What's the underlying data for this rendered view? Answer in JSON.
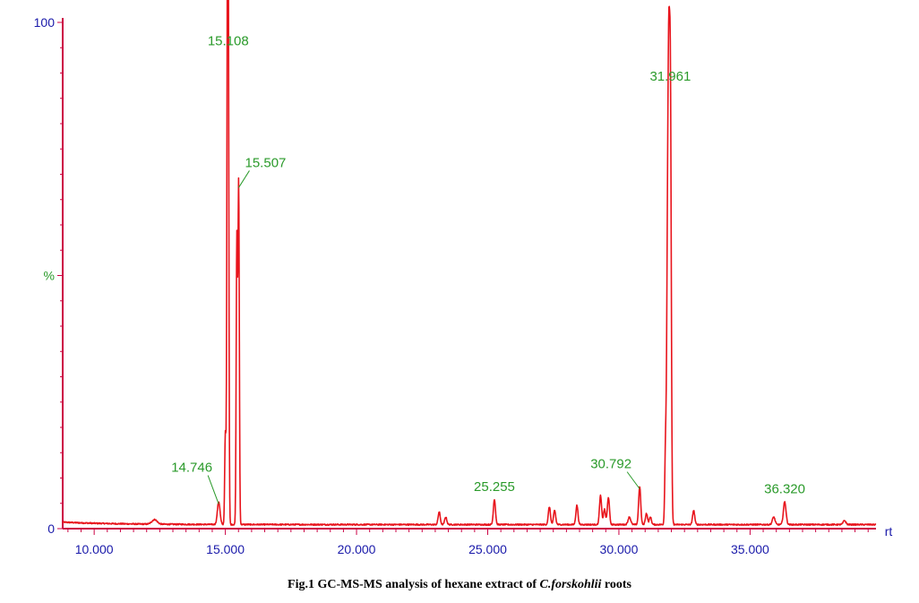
{
  "chart_data": {
    "type": "line",
    "xlabel": "rt",
    "xlim": [
      8.8,
      39.8
    ],
    "ylim": [
      0,
      100
    ],
    "x_ticks": [
      "10.000",
      "15.000",
      "20.000",
      "25.000",
      "30.000",
      "35.000"
    ],
    "x_tick_values": [
      10,
      15,
      20,
      25,
      30,
      35
    ],
    "y_ticks": [
      "100",
      "%",
      "0"
    ],
    "y_tick_values": [
      100,
      50,
      0
    ],
    "grid": false,
    "baseline": 0.8,
    "series": [
      {
        "peaks": [
          {
            "rt": 14.746,
            "height": 4.5,
            "width": 0.05
          },
          {
            "rt": 15.0,
            "height": 18.0,
            "width": 0.025
          },
          {
            "rt": 15.08,
            "height": 80.0,
            "width": 0.025
          },
          {
            "rt": 15.108,
            "height": 93.0,
            "width": 0.025
          },
          {
            "rt": 15.44,
            "height": 53.0,
            "width": 0.025
          },
          {
            "rt": 15.507,
            "height": 67.0,
            "width": 0.025
          },
          {
            "rt": 15.42,
            "height": 5.5,
            "width": 0.02
          },
          {
            "rt": 12.3,
            "height": 0.9,
            "width": 0.1
          },
          {
            "rt": 23.15,
            "height": 2.5,
            "width": 0.04
          },
          {
            "rt": 23.4,
            "height": 1.5,
            "width": 0.04
          },
          {
            "rt": 25.255,
            "height": 5.0,
            "width": 0.04
          },
          {
            "rt": 27.35,
            "height": 3.5,
            "width": 0.04
          },
          {
            "rt": 27.55,
            "height": 2.8,
            "width": 0.04
          },
          {
            "rt": 28.4,
            "height": 3.8,
            "width": 0.04
          },
          {
            "rt": 29.3,
            "height": 5.7,
            "width": 0.04
          },
          {
            "rt": 29.45,
            "height": 3.0,
            "width": 0.04
          },
          {
            "rt": 29.6,
            "height": 5.4,
            "width": 0.04
          },
          {
            "rt": 30.4,
            "height": 1.5,
            "width": 0.05
          },
          {
            "rt": 30.792,
            "height": 7.5,
            "width": 0.04
          },
          {
            "rt": 31.05,
            "height": 2.2,
            "width": 0.04
          },
          {
            "rt": 31.2,
            "height": 1.5,
            "width": 0.04
          },
          {
            "rt": 31.78,
            "height": 16.0,
            "width": 0.03
          },
          {
            "rt": 31.85,
            "height": 47.0,
            "width": 0.03
          },
          {
            "rt": 31.9,
            "height": 70.0,
            "width": 0.03
          },
          {
            "rt": 31.961,
            "height": 86.0,
            "width": 0.035
          },
          {
            "rt": 32.85,
            "height": 2.8,
            "width": 0.04
          },
          {
            "rt": 35.9,
            "height": 1.5,
            "width": 0.05
          },
          {
            "rt": 36.32,
            "height": 4.5,
            "width": 0.05
          },
          {
            "rt": 38.6,
            "height": 0.8,
            "width": 0.05
          }
        ]
      }
    ],
    "annotations": [
      {
        "label": "15.108",
        "rt": 15.108,
        "height": 93.0
      },
      {
        "label": "15.507",
        "rt": 15.507,
        "height": 67.0
      },
      {
        "label": "31.961",
        "rt": 31.961,
        "height": 86.0
      },
      {
        "label": "14.746",
        "rt": 14.746,
        "height": 4.5
      },
      {
        "label": "25.255",
        "rt": 25.255,
        "height": 5.0
      },
      {
        "label": "30.792",
        "rt": 30.792,
        "height": 7.5
      },
      {
        "label": "36.320",
        "rt": 36.32,
        "height": 4.5
      }
    ],
    "colors": {
      "trace": "#e8141c",
      "axis": "#cc0044",
      "tick_label": "#1a1aaa",
      "annotation": "#2a9a2a"
    }
  },
  "caption": {
    "prefix": "Fig.1 GC-MS-MS analysis of hexane extract of ",
    "species": "C.forskohlii",
    "suffix": " roots"
  }
}
